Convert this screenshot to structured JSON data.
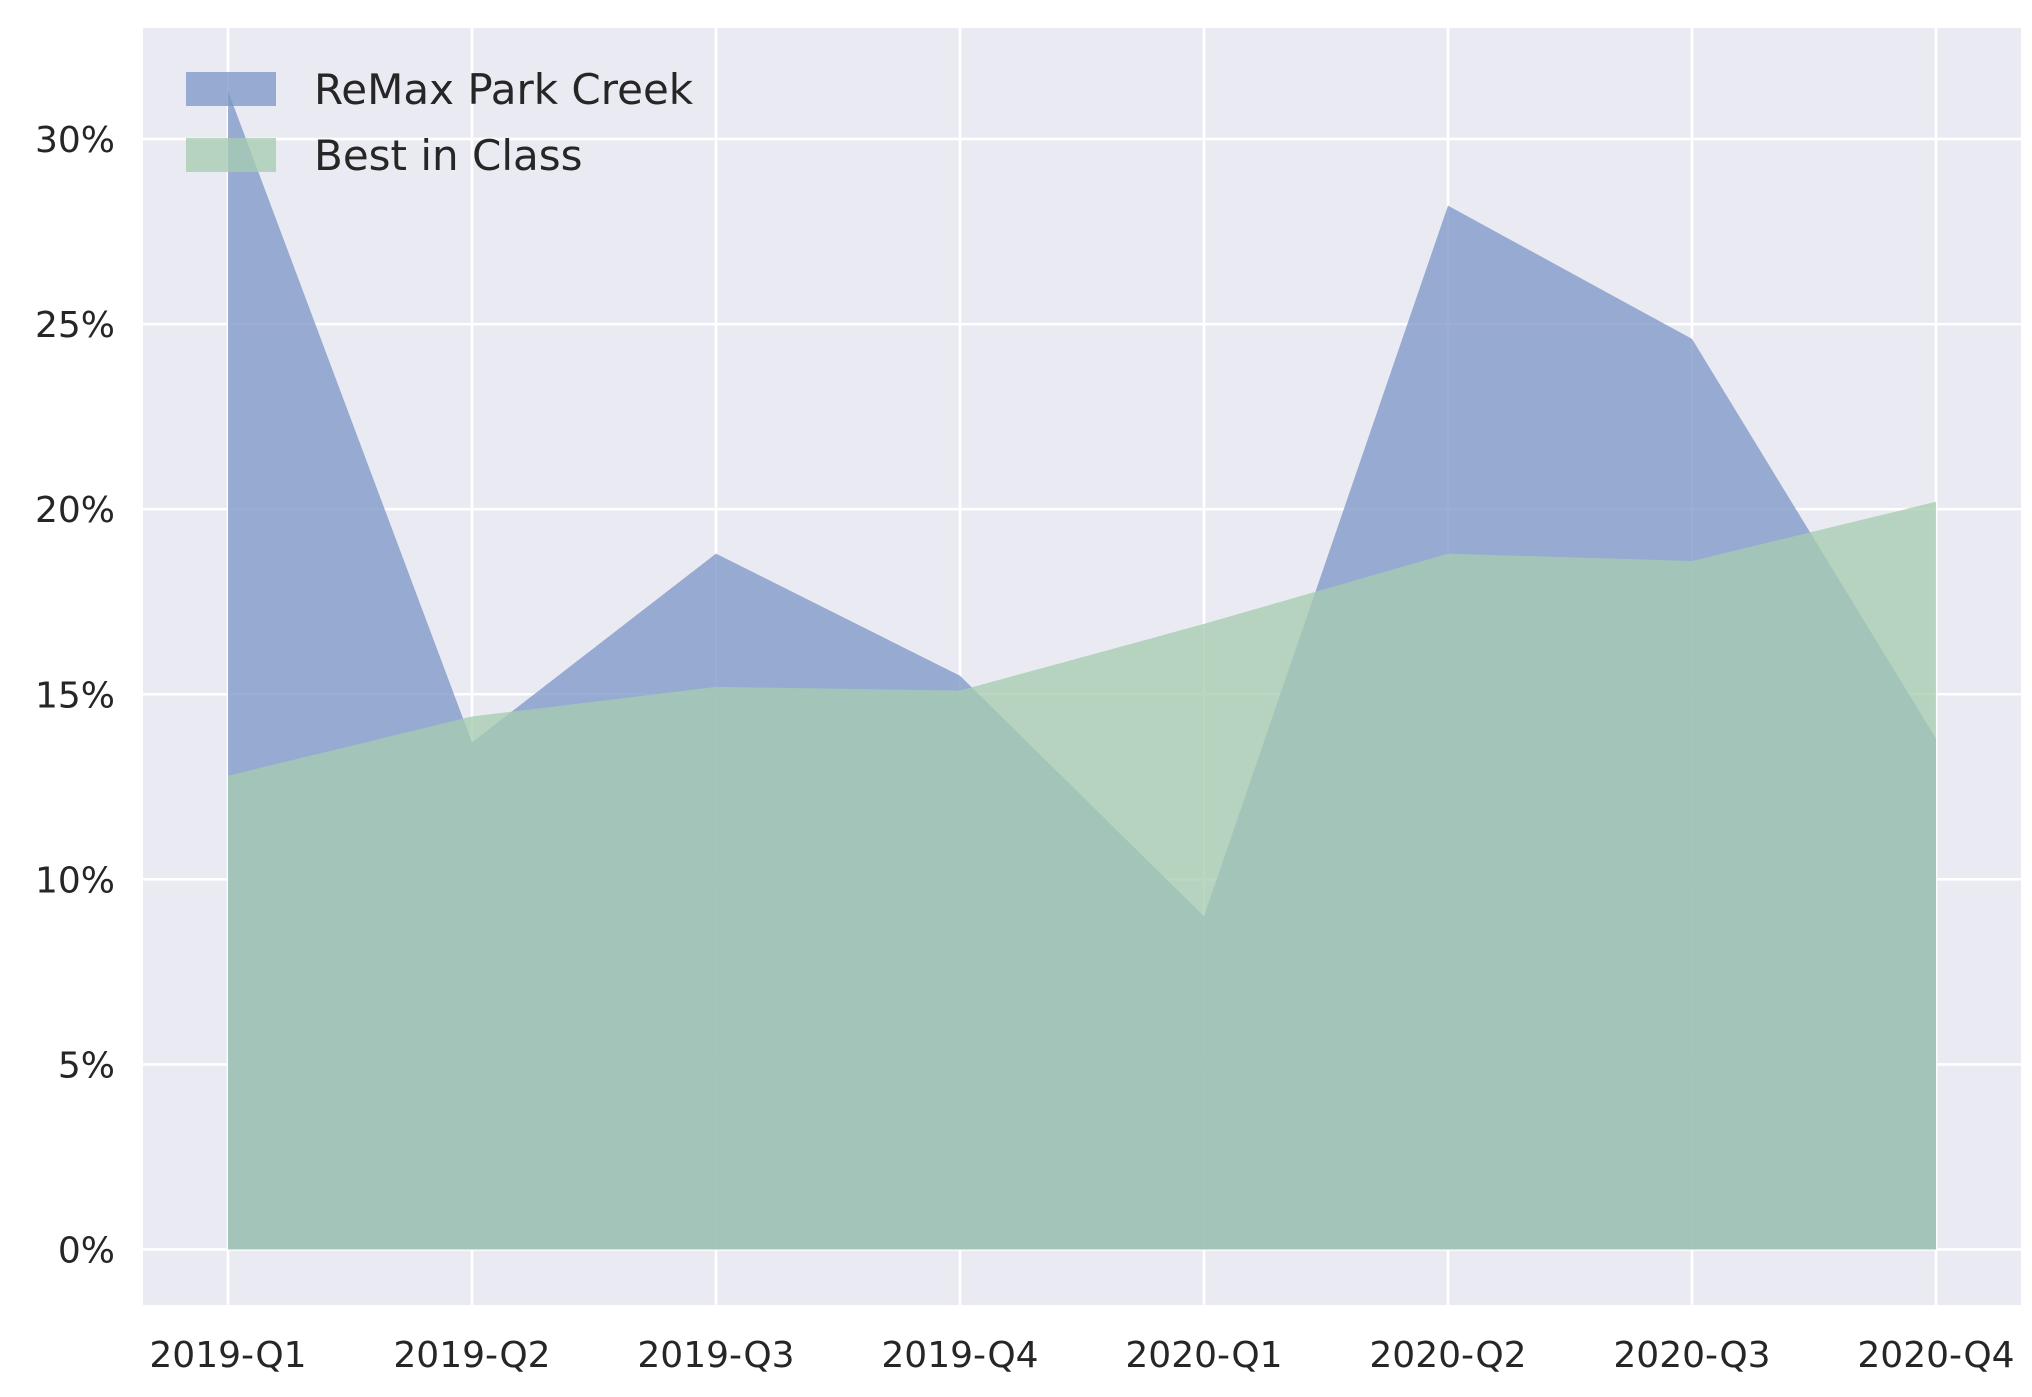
{
  "chart_data": {
    "type": "area",
    "title": "",
    "xlabel": "",
    "ylabel": "",
    "categories": [
      "2019-Q1",
      "2019-Q2",
      "2019-Q3",
      "2019-Q4",
      "2020-Q1",
      "2020-Q2",
      "2020-Q3",
      "2020-Q4"
    ],
    "series": [
      {
        "name": "ReMax Park Creek",
        "color": "#7f97c8",
        "values": [
          31.3,
          13.7,
          18.8,
          15.5,
          9.0,
          28.2,
          24.6,
          13.8
        ]
      },
      {
        "name": "Best in Class",
        "color": "#a6ccb1",
        "values": [
          12.8,
          14.4,
          15.2,
          15.1,
          16.9,
          18.8,
          18.6,
          20.2
        ]
      }
    ],
    "ylim": [
      -1.5,
      33
    ],
    "yticks": [
      0,
      5,
      10,
      15,
      20,
      25,
      30
    ],
    "ytick_labels": [
      "0%",
      "5%",
      "10%",
      "15%",
      "20%",
      "25%",
      "30%"
    ],
    "grid": true,
    "legend_position": "top-left",
    "background_color": "#eaeaf2",
    "grid_color": "#ffffff"
  }
}
